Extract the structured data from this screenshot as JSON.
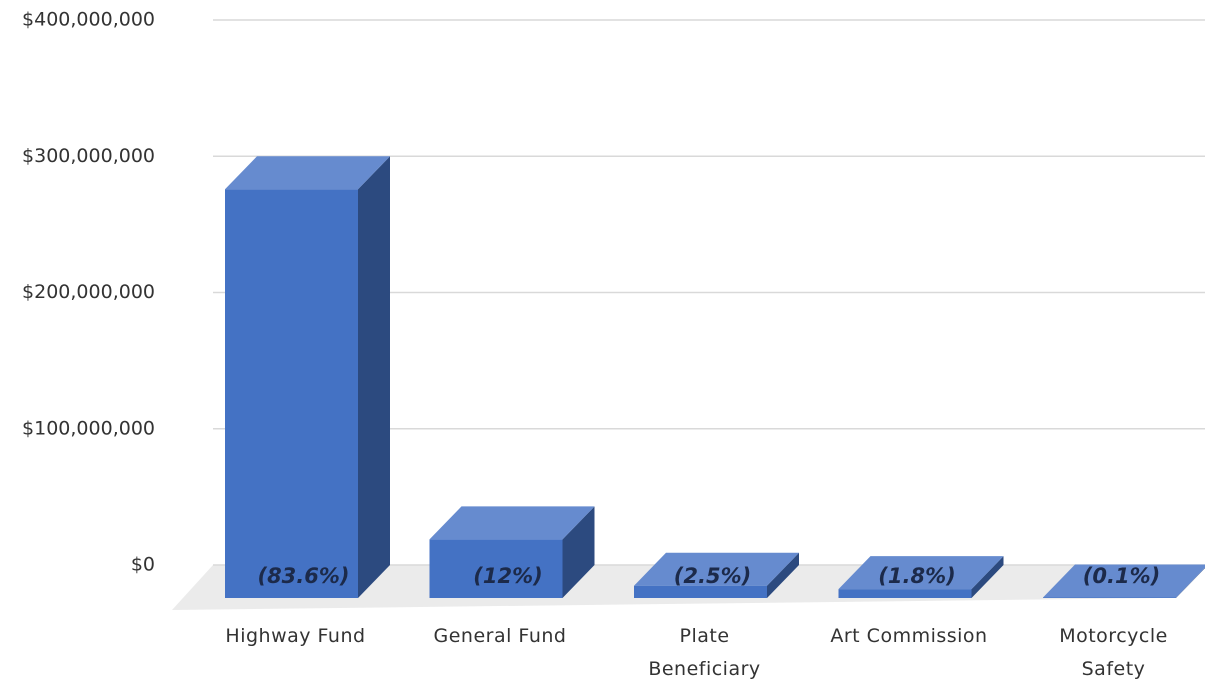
{
  "chart_data": {
    "type": "bar3d",
    "categories": [
      "Highway Fund",
      "General Fund",
      "Plate\nBeneficiary",
      "Art Commission",
      "Motorcycle\nSafety"
    ],
    "values": [
      300000000,
      43000000,
      9000000,
      6500000,
      360000
    ],
    "data_labels": [
      "(83.6%)",
      "(12%)",
      "(2.5%)",
      "(1.8%)",
      "(0.1%)"
    ],
    "color": "#4472c4",
    "ylim": [
      0,
      400000000
    ],
    "yticks": [
      {
        "value": 0,
        "label": "$0"
      },
      {
        "value": 100000000,
        "label": "$100,000,000"
      },
      {
        "value": 200000000,
        "label": "$200,000,000"
      },
      {
        "value": 300000000,
        "label": "$300,000,000"
      },
      {
        "value": 400000000,
        "label": "$400,000,000"
      }
    ],
    "grid": true
  }
}
